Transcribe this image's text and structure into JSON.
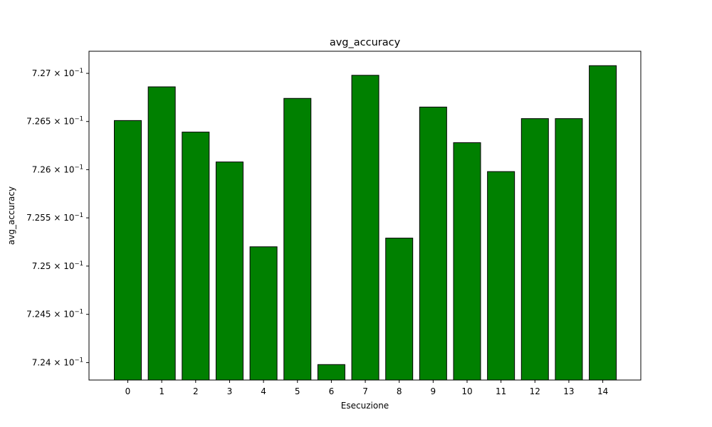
{
  "chart_data": {
    "type": "bar",
    "title": "avg_accuracy",
    "xlabel": "Esecuzione",
    "ylabel": "avg_accuracy",
    "categories": [
      "0",
      "1",
      "2",
      "3",
      "4",
      "5",
      "6",
      "7",
      "8",
      "9",
      "10",
      "11",
      "12",
      "13",
      "14"
    ],
    "values": [
      0.72651,
      0.72686,
      0.72639,
      0.72608,
      0.7252,
      0.72674,
      0.72398,
      0.72698,
      0.72529,
      0.72665,
      0.72628,
      0.72598,
      0.72653,
      0.72653,
      0.72708
    ],
    "ylim": [
      0.72382,
      0.72723
    ],
    "y_scale": "log",
    "y_ticks": [
      0.724,
      0.7245,
      0.725,
      0.7255,
      0.726,
      0.7265,
      0.727
    ],
    "y_tick_labels": [
      {
        "mantissa": "7.24",
        "times": "×",
        "base": "10",
        "exp": "−1"
      },
      {
        "mantissa": "7.245",
        "times": "×",
        "base": "10",
        "exp": "−1"
      },
      {
        "mantissa": "7.25",
        "times": "×",
        "base": "10",
        "exp": "−1"
      },
      {
        "mantissa": "7.255",
        "times": "×",
        "base": "10",
        "exp": "−1"
      },
      {
        "mantissa": "7.26",
        "times": "×",
        "base": "10",
        "exp": "−1"
      },
      {
        "mantissa": "7.265",
        "times": "×",
        "base": "10",
        "exp": "−1"
      },
      {
        "mantissa": "7.27",
        "times": "×",
        "base": "10",
        "exp": "−1"
      }
    ],
    "grid": false,
    "bar_color": "#008000",
    "bar_edge_color": "#000000"
  }
}
